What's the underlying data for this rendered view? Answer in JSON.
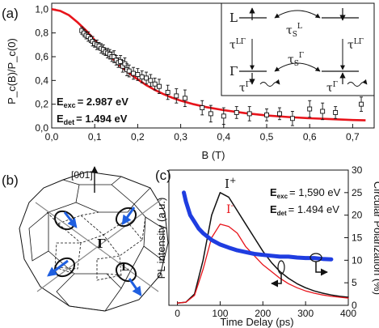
{
  "panels": {
    "a": "(a)",
    "b": "(b)",
    "c": "(c)"
  },
  "panel_a": {
    "ylabel": "P_c(B)/P_c(0)",
    "xlabel": "B (T)",
    "xticks": [
      "0,0",
      "0,1",
      "0,2",
      "0,3",
      "0,4",
      "0,5",
      "0,6",
      "0,7"
    ],
    "yticks": [
      "0,0",
      "0,2",
      "0,4",
      "0,6",
      "0,8",
      "1,0"
    ],
    "annot_exc": "E",
    "annot_exc_sub": "exc",
    "annot_exc_val": "= 2.987 eV",
    "annot_det": "E",
    "annot_det_sub": "det",
    "annot_det_val": "= 1.494 eV",
    "inset": {
      "L": "L",
      "Gamma": "Γ",
      "tau": "τ",
      "S": "S",
      "sup_L": "L",
      "sup_LG": "LΓ",
      "sup_G": "Γ"
    }
  },
  "panel_b": {
    "dir_label": "[001]",
    "gamma_label": "Γ",
    "l_label": "L"
  },
  "panel_c": {
    "ylabel_left": "PL intensity (a.u.)",
    "ylabel_right": "Circular Polarization (%)",
    "xlabel": "Time Delay (ps)",
    "xticks": [
      "0",
      "100",
      "200",
      "300",
      "400"
    ],
    "yticks_right": [
      "0",
      "5",
      "10",
      "15",
      "20",
      "25",
      "30"
    ],
    "label_Iplus": "I",
    "label_Iplus_sup": "+",
    "label_Iminus": "I",
    "label_Iminus_sup": "-",
    "annot_exc": "E",
    "annot_exc_sub": "exc",
    "annot_exc_val": "= 1,590 eV",
    "annot_det": "E",
    "annot_det_sub": "det",
    "annot_det_val": "= 1.494 eV"
  },
  "colors": {
    "fit_red": "#e8141b",
    "polarization_blue": "#1f3de0",
    "arrow_blue": "#1f5fe0"
  },
  "chart_data": [
    {
      "type": "scatter",
      "xlabel": "B (T)",
      "ylabel": "P_c(B)/P_c(0)",
      "xlim": [
        0,
        0.75
      ],
      "ylim": [
        0,
        1.05
      ],
      "series": [
        {
          "x": [
            0.07,
            0.075,
            0.08,
            0.085,
            0.09,
            0.095,
            0.1,
            0.105,
            0.11,
            0.115,
            0.12,
            0.125,
            0.13,
            0.135,
            0.14,
            0.145,
            0.15,
            0.155,
            0.16,
            0.165,
            0.17,
            0.175,
            0.18,
            0.19,
            0.2,
            0.21,
            0.22,
            0.23,
            0.24,
            0.25,
            0.27,
            0.29,
            0.31,
            0.35,
            0.37,
            0.4,
            0.43,
            0.46,
            0.5,
            0.53,
            0.56,
            0.6,
            0.63,
            0.66,
            0.72
          ],
          "y": [
            0.82,
            0.8,
            0.78,
            0.77,
            0.75,
            0.73,
            0.71,
            0.7,
            0.69,
            0.67,
            0.66,
            0.64,
            0.63,
            0.62,
            0.6,
            0.6,
            0.57,
            0.55,
            0.56,
            0.52,
            0.54,
            0.49,
            0.48,
            0.46,
            0.45,
            0.43,
            0.42,
            0.4,
            0.37,
            0.35,
            0.3,
            0.27,
            0.25,
            0.17,
            0.12,
            0.1,
            0.13,
            0.12,
            0.11,
            0.12,
            0.08,
            0.16,
            0.14,
            0.13,
            0.2
          ],
          "errors": [
            0.03,
            0.03,
            0.03,
            0.04,
            0.03,
            0.04,
            0.03,
            0.04,
            0.03,
            0.04,
            0.04,
            0.03,
            0.04,
            0.04,
            0.04,
            0.05,
            0.04,
            0.04,
            0.05,
            0.05,
            0.05,
            0.05,
            0.05,
            0.05,
            0.05,
            0.05,
            0.05,
            0.05,
            0.05,
            0.06,
            0.06,
            0.06,
            0.07,
            0.06,
            0.07,
            0.07,
            0.05,
            0.06,
            0.05,
            0.05,
            0.06,
            0.07,
            0.07,
            0.05,
            0.06
          ]
        },
        {
          "type": "line",
          "x": [
            0,
            0.02,
            0.04,
            0.06,
            0.08,
            0.1,
            0.12,
            0.14,
            0.16,
            0.18,
            0.2,
            0.22,
            0.24,
            0.26,
            0.28,
            0.3,
            0.33,
            0.36,
            0.4,
            0.45,
            0.5,
            0.55,
            0.6,
            0.65,
            0.7,
            0.73
          ],
          "y": [
            1.0,
            0.985,
            0.95,
            0.89,
            0.82,
            0.74,
            0.66,
            0.59,
            0.52,
            0.46,
            0.41,
            0.36,
            0.32,
            0.285,
            0.255,
            0.23,
            0.2,
            0.175,
            0.15,
            0.125,
            0.105,
            0.092,
            0.082,
            0.074,
            0.067,
            0.064
          ]
        }
      ]
    },
    {
      "type": "line",
      "xlabel": "Time Delay (ps)",
      "ylabel": "PL intensity (a.u.)",
      "ylabel_right": "Circular Polarization (%)",
      "xlim": [
        -20,
        400
      ],
      "ylim_right": [
        0,
        30
      ],
      "series": [
        {
          "name": "I+",
          "x": [
            0,
            20,
            40,
            60,
            80,
            100,
            120,
            140,
            160,
            180,
            200,
            220,
            240,
            260,
            280,
            300,
            320,
            340,
            360,
            380,
            400
          ],
          "y": [
            0.5,
            0.7,
            2.5,
            10,
            20,
            25,
            24,
            21,
            18,
            15,
            12,
            9.5,
            7.5,
            6,
            4.8,
            3.9,
            3.2,
            2.7,
            2.3,
            2.0,
            1.8
          ]
        },
        {
          "name": "I-",
          "x": [
            0,
            20,
            40,
            60,
            80,
            100,
            120,
            140,
            160,
            180,
            200,
            220,
            240,
            260,
            280,
            300,
            320,
            340,
            360,
            380,
            400
          ],
          "y": [
            0.5,
            0.7,
            2.2,
            8,
            15,
            18,
            17.5,
            16,
            13,
            11,
            9,
            7.5,
            6,
            4.8,
            3.9,
            3.2,
            2.7,
            2.3,
            2.0,
            1.8,
            1.6
          ]
        },
        {
          "name": "Circular Polarization",
          "x": [
            15,
            20,
            30,
            40,
            50,
            60,
            80,
            100,
            120,
            140,
            160,
            180,
            200,
            220,
            240,
            260,
            280,
            300,
            320,
            340,
            360
          ],
          "y": [
            25,
            23,
            20,
            18.5,
            17,
            16,
            14.5,
            13.5,
            12.8,
            12.2,
            11.8,
            11.4,
            11.2,
            11.0,
            10.8,
            10.8,
            10.6,
            10.5,
            10.5,
            10.3,
            10.2
          ]
        }
      ]
    }
  ]
}
